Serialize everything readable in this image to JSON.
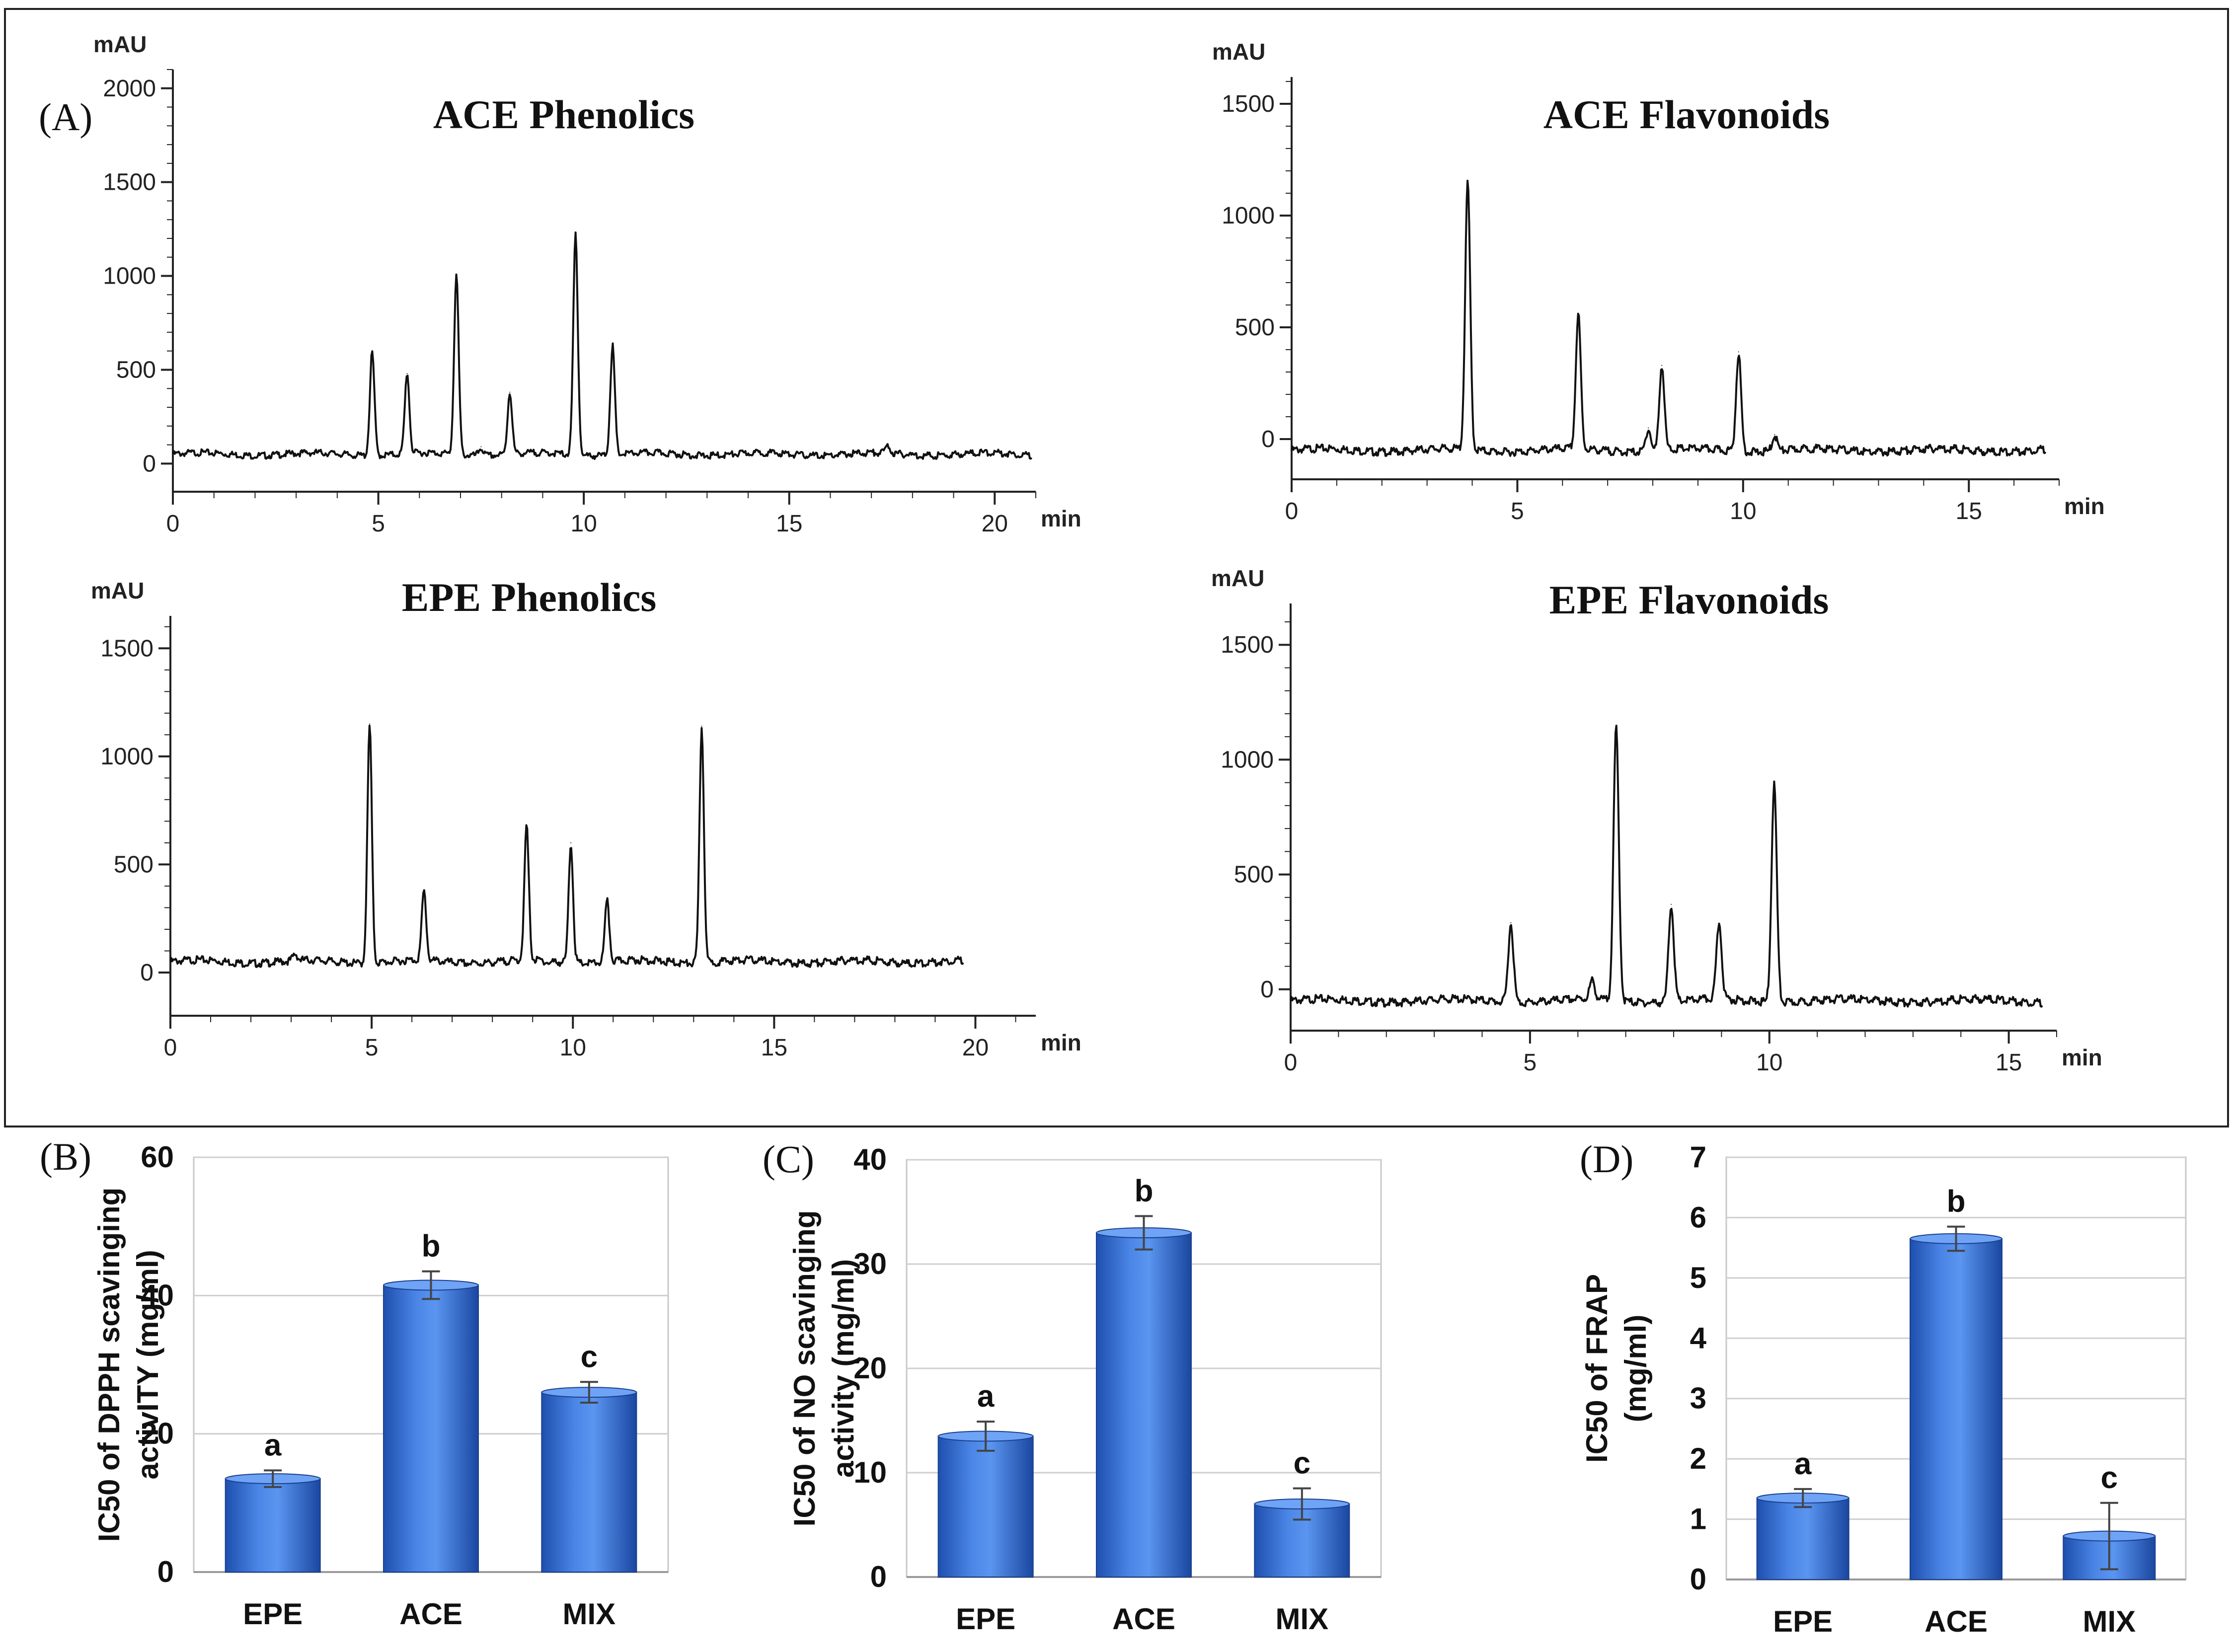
{
  "chart_data": [
    {
      "type": "line",
      "panel": "(A)",
      "title": "ACE Phenolics",
      "yunit": "mAU",
      "xunit": "min",
      "xlim": [
        0,
        21
      ],
      "ylim": [
        -150,
        2100
      ],
      "xticks": [
        0,
        5,
        10,
        15,
        20
      ],
      "yticks": [
        0,
        500,
        1000,
        1500,
        2000
      ],
      "baseline": 50,
      "peaks": [
        {
          "x": 4.85,
          "y": 600
        },
        {
          "x": 5.7,
          "y": 480
        },
        {
          "x": 6.9,
          "y": 1010
        },
        {
          "x": 7.5,
          "y": 90
        },
        {
          "x": 8.2,
          "y": 380
        },
        {
          "x": 9.8,
          "y": 1230
        },
        {
          "x": 10.7,
          "y": 630
        },
        {
          "x": 17.4,
          "y": 90
        }
      ],
      "xend": 20.9
    },
    {
      "type": "line",
      "title": "ACE Flavonoids",
      "yunit": "mAU",
      "xunit": "min",
      "xlim": [
        0,
        17
      ],
      "ylim": [
        -180,
        1620
      ],
      "xticks": [
        0,
        5,
        10,
        15
      ],
      "yticks": [
        0,
        500,
        1000,
        1500
      ],
      "baseline": -50,
      "peaks": [
        {
          "x": 3.9,
          "y": 1150
        },
        {
          "x": 6.35,
          "y": 550
        },
        {
          "x": 7.9,
          "y": 50
        },
        {
          "x": 8.2,
          "y": 330
        },
        {
          "x": 9.9,
          "y": 390
        },
        {
          "x": 10.7,
          "y": 20
        }
      ],
      "xend": 16.7
    },
    {
      "type": "line",
      "title": "EPE Phenolics",
      "yunit": "mAU",
      "xunit": "min",
      "xlim": [
        0,
        21.5
      ],
      "ylim": [
        -200,
        1650
      ],
      "xticks": [
        0,
        5,
        10,
        15,
        20
      ],
      "yticks": [
        0,
        500,
        1000,
        1500
      ],
      "baseline": 50,
      "peaks": [
        {
          "x": 3.1,
          "y": 80
        },
        {
          "x": 4.95,
          "y": 1150
        },
        {
          "x": 6.3,
          "y": 370
        },
        {
          "x": 8.85,
          "y": 670
        },
        {
          "x": 9.4,
          "y": 40
        },
        {
          "x": 9.95,
          "y": 600
        },
        {
          "x": 10.85,
          "y": 330
        },
        {
          "x": 13.2,
          "y": 1140
        }
      ],
      "xend": 19.7
    },
    {
      "type": "line",
      "title": "EPE Flavonoids",
      "yunit": "mAU",
      "xunit": "min",
      "xlim": [
        0,
        16
      ],
      "ylim": [
        -180,
        1680
      ],
      "xticks": [
        0,
        5,
        10,
        15
      ],
      "yticks": [
        0,
        500,
        1000,
        1500
      ],
      "baseline": -50,
      "peaks": [
        {
          "x": 4.6,
          "y": 290
        },
        {
          "x": 6.3,
          "y": 30
        },
        {
          "x": 6.8,
          "y": 1140
        },
        {
          "x": 7.95,
          "y": 370
        },
        {
          "x": 8.95,
          "y": 280
        },
        {
          "x": 10.1,
          "y": 900
        }
      ],
      "xend": 15.7
    },
    {
      "type": "bar",
      "panel": "(B)",
      "categories": [
        "EPE",
        "ACE",
        "MIX"
      ],
      "values": [
        13.5,
        41.5,
        26
      ],
      "errors": [
        1.2,
        2.0,
        1.5
      ],
      "letters": [
        "a",
        "b",
        "c"
      ],
      "ylabel_line1": "IC50 of DPPH scavinging",
      "ylabel_line2": "activITY  (mg/ml)",
      "ylim": [
        0,
        60
      ],
      "yticks": [
        0,
        20,
        40,
        60
      ]
    },
    {
      "type": "bar",
      "panel": "(C)",
      "categories": [
        "EPE",
        "ACE",
        "MIX"
      ],
      "values": [
        13.5,
        33,
        7
      ],
      "errors": [
        1.4,
        1.6,
        1.5
      ],
      "letters": [
        "a",
        "b",
        "c"
      ],
      "ylabel_line1": "IC50 of NO scavinging",
      "ylabel_line2": "activity  (mg/ml)",
      "ylim": [
        0,
        40
      ],
      "yticks": [
        0,
        10,
        20,
        30,
        40
      ]
    },
    {
      "type": "bar",
      "panel": "(D)",
      "categories": [
        "EPE",
        "ACE",
        "MIX"
      ],
      "values": [
        1.35,
        5.65,
        0.72
      ],
      "errors": [
        0.15,
        0.2,
        0.55
      ],
      "letters": [
        "a",
        "b",
        "c"
      ],
      "ylabel_line1": "IC50 of FRAP",
      "ylabel_line2": "(mg/ml)",
      "ylim": [
        0,
        7
      ],
      "yticks": [
        0,
        1,
        2,
        3,
        4,
        5,
        6,
        7
      ]
    }
  ]
}
